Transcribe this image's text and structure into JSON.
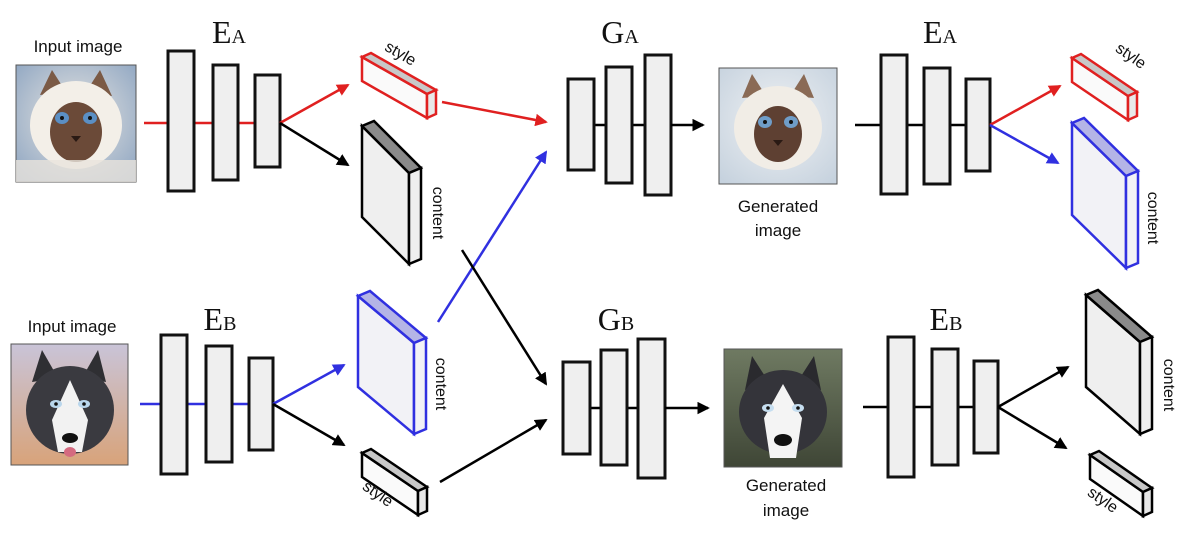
{
  "top_row": {
    "input_label": "Input image",
    "encoder_label": {
      "main": "E",
      "sub": "A"
    },
    "style_label": "style",
    "content_label": "content",
    "generator_label": {
      "main": "G",
      "sub": "A"
    },
    "generated_label": [
      "Generated",
      "image"
    ],
    "re_encoder_label": {
      "main": "E",
      "sub": "A"
    },
    "re_style_label": "style",
    "re_content_label": "content"
  },
  "bottom_row": {
    "input_label": "Input image",
    "encoder_label": {
      "main": "E",
      "sub": "B"
    },
    "content_label": "content",
    "style_label": "style",
    "generator_label": {
      "main": "G",
      "sub": "B"
    },
    "generated_label": [
      "Generated",
      "image"
    ],
    "re_encoder_label": {
      "main": "E",
      "sub": "B"
    },
    "re_content_label": "content",
    "re_style_label": "style"
  },
  "colors": {
    "domain_a": "#e02020",
    "domain_b": "#3030e0",
    "neutral": "#000000"
  },
  "images": {
    "top_input": "cat-photo",
    "top_generated": "cat-photo",
    "bottom_input": "husky-photo",
    "bottom_generated": "husky-photo"
  }
}
